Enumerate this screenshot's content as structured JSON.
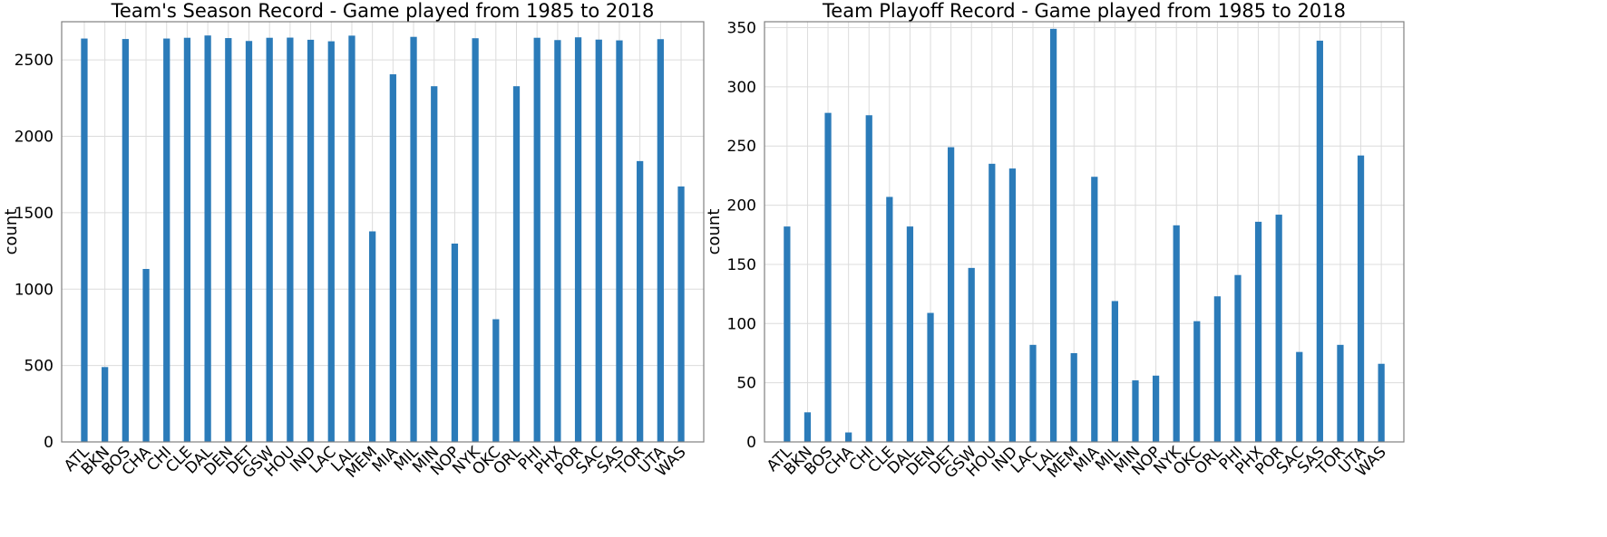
{
  "chart_data": [
    {
      "type": "bar",
      "title": "Team's Season Record - Game played from 1985 to 2018",
      "xlabel": "",
      "ylabel": "count",
      "grid": true,
      "ylim": [
        0,
        2750
      ],
      "yticks": [
        0,
        500,
        1000,
        1500,
        2000,
        2500
      ],
      "categories": [
        "ATL",
        "BKN",
        "BOS",
        "CHA",
        "CHI",
        "CLE",
        "DAL",
        "DEN",
        "DET",
        "GSW",
        "HOU",
        "IND",
        "LAC",
        "LAL",
        "MEM",
        "MIA",
        "MIL",
        "MIN",
        "NOP",
        "NYK",
        "OKC",
        "ORL",
        "PHI",
        "PHX",
        "POR",
        "SAC",
        "SAS",
        "TOR",
        "UTA",
        "WAS"
      ],
      "values": [
        2640,
        490,
        2637,
        1132,
        2640,
        2645,
        2660,
        2643,
        2624,
        2645,
        2646,
        2632,
        2622,
        2659,
        1378,
        2406,
        2651,
        2328,
        1298,
        2642,
        803,
        2328,
        2645,
        2630,
        2648,
        2633,
        2628,
        1838,
        2636,
        1672
      ],
      "color": "#2b7bb9"
    },
    {
      "type": "bar",
      "title": "Team Playoff Record - Game played from 1985 to 2018",
      "xlabel": "",
      "ylabel": "count",
      "grid": true,
      "ylim": [
        0,
        355
      ],
      "yticks": [
        0,
        50,
        100,
        150,
        200,
        250,
        300,
        350
      ],
      "categories": [
        "ATL",
        "BKN",
        "BOS",
        "CHA",
        "CHI",
        "CLE",
        "DAL",
        "DEN",
        "DET",
        "GSW",
        "HOU",
        "IND",
        "LAC",
        "LAL",
        "MEM",
        "MIA",
        "MIL",
        "MIN",
        "NOP",
        "NYK",
        "OKC",
        "ORL",
        "PHI",
        "PHX",
        "POR",
        "SAC",
        "SAS",
        "TOR",
        "UTA",
        "WAS"
      ],
      "values": [
        182,
        25,
        278,
        8,
        276,
        207,
        182,
        109,
        249,
        147,
        235,
        231,
        82,
        349,
        75,
        224,
        119,
        52,
        56,
        183,
        102,
        123,
        141,
        186,
        192,
        76,
        339,
        82,
        242,
        66
      ],
      "color": "#2b7bb9"
    }
  ]
}
